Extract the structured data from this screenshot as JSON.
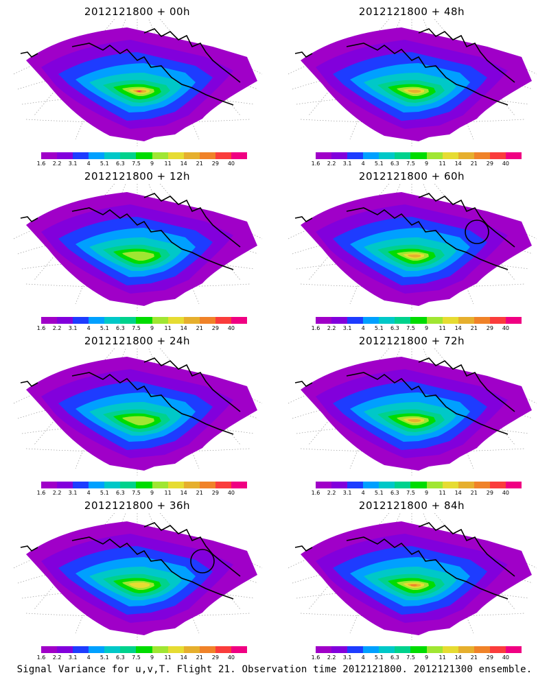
{
  "panels": [
    {
      "title": "2012121800 + 00h",
      "lead_hours": 0,
      "max_level": 13,
      "circle": false
    },
    {
      "title": "2012121800 + 48h",
      "lead_hours": 48,
      "max_level": 10,
      "circle": false
    },
    {
      "title": "2012121800 + 12h",
      "lead_hours": 12,
      "max_level": 8,
      "circle": false
    },
    {
      "title": "2012121800 + 60h",
      "lead_hours": 60,
      "max_level": 10,
      "circle": true
    },
    {
      "title": "2012121800 + 24h",
      "lead_hours": 24,
      "max_level": 8,
      "circle": false
    },
    {
      "title": "2012121800 + 72h",
      "lead_hours": 72,
      "max_level": 10,
      "circle": false
    },
    {
      "title": "2012121800 + 36h",
      "lead_hours": 36,
      "max_level": 9,
      "circle": true
    },
    {
      "title": "2012121800 + 84h",
      "lead_hours": 84,
      "max_level": 11,
      "circle": false
    }
  ],
  "colorbar": {
    "labels": [
      "1.6",
      "2.2",
      "3.1",
      "4",
      "5.1",
      "6.3",
      "7.5",
      "9",
      "11",
      "14",
      "21",
      "29",
      "40"
    ],
    "colors": [
      "#a000c8",
      "#8200dc",
      "#1e3cff",
      "#00a0ff",
      "#00c8c8",
      "#00d28c",
      "#00dc00",
      "#a0e632",
      "#e6dc32",
      "#e6af2d",
      "#f08228",
      "#fa3c3c",
      "#f00082"
    ]
  },
  "caption": "Signal Variance for u,v,T. Flight 21. Observation time 2012121800. 2012121300 ensemble."
}
